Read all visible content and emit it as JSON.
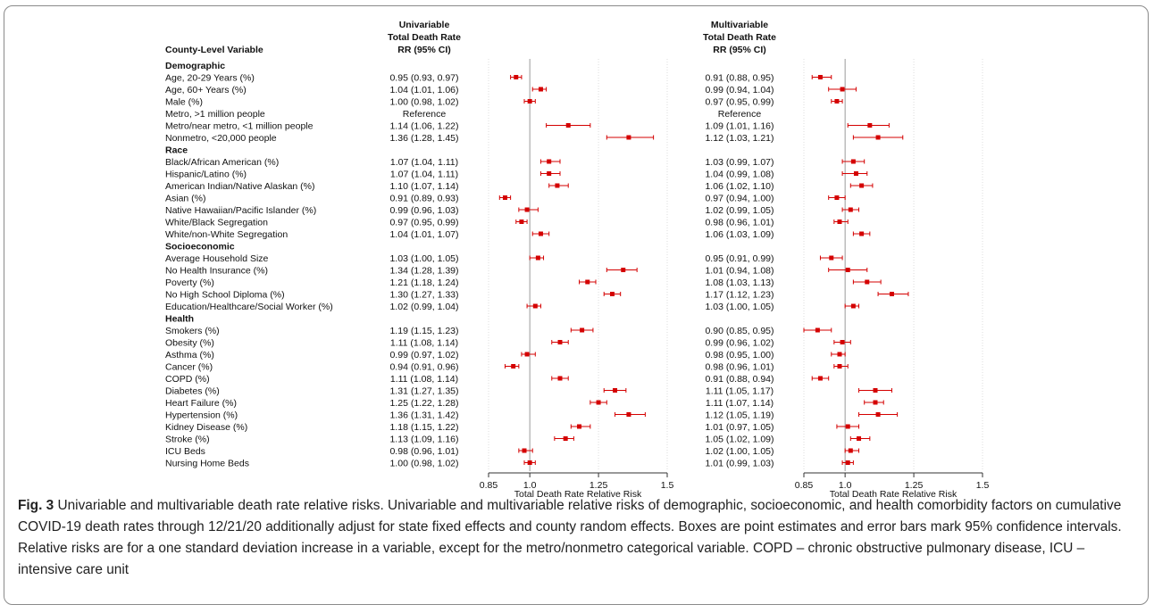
{
  "figure": {
    "header_variable": "County-Level Variable",
    "uni_header": [
      "Univariable",
      "Total Death Rate",
      "RR (95% CI)"
    ],
    "multi_header": [
      "Multivariable",
      "Total Death Rate",
      "RR (95% CI)"
    ],
    "xlabel": "Total Death Rate Relative Risk"
  },
  "caption": {
    "lead": "Fig. 3",
    "text": "Univariable and multivariable death rate relative risks. Univariable and multivariable relative risks of demographic, socioeconomic, and health comorbidity factors on cumulative COVID-19 death rates through 12/21/20 additionally adjust for state fixed effects and county random effects. Boxes are point estimates and error bars mark 95% confidence intervals. Relative risks are for a one standard deviation increase in a variable, except for the metro/nonmetro categorical variable. COPD – chronic obstructive pulmonary disease, ICU – intensive care unit"
  },
  "chart_data": {
    "type": "forest",
    "xlabel": "Total Death Rate Relative Risk",
    "xlim": [
      0.85,
      1.5
    ],
    "xticks": [
      0.85,
      1.0,
      1.25,
      1.5
    ],
    "xtick_labels": [
      "0.85",
      "1.0",
      "1.25",
      "1.5"
    ],
    "reference_line": 1.0,
    "marker_color": "#d40000",
    "panels": [
      "Univariable",
      "Multivariable"
    ],
    "rows": [
      {
        "type": "header",
        "label": "Demographic"
      },
      {
        "label": "Age, 20-29 Years (%)",
        "uni_text": "0.95 (0.93, 0.97)",
        "uni": [
          0.95,
          0.93,
          0.97
        ],
        "multi_text": "0.91 (0.88, 0.95)",
        "multi": [
          0.91,
          0.88,
          0.95
        ]
      },
      {
        "label": "Age, 60+ Years (%)",
        "uni_text": "1.04 (1.01, 1.06)",
        "uni": [
          1.04,
          1.01,
          1.06
        ],
        "multi_text": "0.99 (0.94, 1.04)",
        "multi": [
          0.99,
          0.94,
          1.04
        ]
      },
      {
        "label": "Male (%)",
        "uni_text": "1.00 (0.98, 1.02)",
        "uni": [
          1.0,
          0.98,
          1.02
        ],
        "multi_text": "0.97 (0.95, 0.99)",
        "multi": [
          0.97,
          0.95,
          0.99
        ]
      },
      {
        "label": "Metro, >1 million people",
        "uni_text": "Reference",
        "uni": null,
        "multi_text": "Reference",
        "multi": null
      },
      {
        "label": "Metro/near metro, <1 million people",
        "uni_text": "1.14 (1.06, 1.22)",
        "uni": [
          1.14,
          1.06,
          1.22
        ],
        "multi_text": "1.09 (1.01, 1.16)",
        "multi": [
          1.09,
          1.01,
          1.16
        ]
      },
      {
        "label": "Nonmetro, <20,000 people",
        "uni_text": "1.36 (1.28, 1.45)",
        "uni": [
          1.36,
          1.28,
          1.45
        ],
        "multi_text": "1.12 (1.03, 1.21)",
        "multi": [
          1.12,
          1.03,
          1.21
        ]
      },
      {
        "type": "header",
        "label": "Race"
      },
      {
        "label": "Black/African American (%)",
        "uni_text": "1.07 (1.04, 1.11)",
        "uni": [
          1.07,
          1.04,
          1.11
        ],
        "multi_text": "1.03 (0.99, 1.07)",
        "multi": [
          1.03,
          0.99,
          1.07
        ]
      },
      {
        "label": "Hispanic/Latino (%)",
        "uni_text": "1.07 (1.04, 1.11)",
        "uni": [
          1.07,
          1.04,
          1.11
        ],
        "multi_text": "1.04 (0.99, 1.08)",
        "multi": [
          1.04,
          0.99,
          1.08
        ]
      },
      {
        "label": "American Indian/Native Alaskan (%)",
        "uni_text": "1.10 (1.07, 1.14)",
        "uni": [
          1.1,
          1.07,
          1.14
        ],
        "multi_text": "1.06 (1.02, 1.10)",
        "multi": [
          1.06,
          1.02,
          1.1
        ]
      },
      {
        "label": "Asian (%)",
        "uni_text": "0.91 (0.89, 0.93)",
        "uni": [
          0.91,
          0.89,
          0.93
        ],
        "multi_text": "0.97 (0.94, 1.00)",
        "multi": [
          0.97,
          0.94,
          1.0
        ]
      },
      {
        "label": "Native Hawaiian/Pacific Islander (%)",
        "uni_text": "0.99 (0.96, 1.03)",
        "uni": [
          0.99,
          0.96,
          1.03
        ],
        "multi_text": "1.02 (0.99, 1.05)",
        "multi": [
          1.02,
          0.99,
          1.05
        ]
      },
      {
        "label": "White/Black Segregation",
        "uni_text": "0.97 (0.95, 0.99)",
        "uni": [
          0.97,
          0.95,
          0.99
        ],
        "multi_text": "0.98 (0.96, 1.01)",
        "multi": [
          0.98,
          0.96,
          1.01
        ]
      },
      {
        "label": "White/non-White Segregation",
        "uni_text": "1.04 (1.01, 1.07)",
        "uni": [
          1.04,
          1.01,
          1.07
        ],
        "multi_text": "1.06 (1.03, 1.09)",
        "multi": [
          1.06,
          1.03,
          1.09
        ]
      },
      {
        "type": "header",
        "label": "Socioeconomic"
      },
      {
        "label": "Average Household Size",
        "uni_text": "1.03 (1.00, 1.05)",
        "uni": [
          1.03,
          1.0,
          1.05
        ],
        "multi_text": "0.95 (0.91, 0.99)",
        "multi": [
          0.95,
          0.91,
          0.99
        ]
      },
      {
        "label": "No Health Insurance (%)",
        "uni_text": "1.34 (1.28, 1.39)",
        "uni": [
          1.34,
          1.28,
          1.39
        ],
        "multi_text": "1.01 (0.94, 1.08)",
        "multi": [
          1.01,
          0.94,
          1.08
        ]
      },
      {
        "label": "Poverty (%)",
        "uni_text": "1.21 (1.18, 1.24)",
        "uni": [
          1.21,
          1.18,
          1.24
        ],
        "multi_text": "1.08 (1.03, 1.13)",
        "multi": [
          1.08,
          1.03,
          1.13
        ]
      },
      {
        "label": "No High School Diploma (%)",
        "uni_text": "1.30 (1.27, 1.33)",
        "uni": [
          1.3,
          1.27,
          1.33
        ],
        "multi_text": "1.17 (1.12, 1.23)",
        "multi": [
          1.17,
          1.12,
          1.23
        ]
      },
      {
        "label": "Education/Healthcare/Social Worker (%)",
        "uni_text": "1.02 (0.99, 1.04)",
        "uni": [
          1.02,
          0.99,
          1.04
        ],
        "multi_text": "1.03 (1.00, 1.05)",
        "multi": [
          1.03,
          1.0,
          1.05
        ]
      },
      {
        "type": "header",
        "label": "Health"
      },
      {
        "label": "Smokers (%)",
        "uni_text": "1.19 (1.15, 1.23)",
        "uni": [
          1.19,
          1.15,
          1.23
        ],
        "multi_text": "0.90 (0.85, 0.95)",
        "multi": [
          0.9,
          0.85,
          0.95
        ]
      },
      {
        "label": "Obesity (%)",
        "uni_text": "1.11 (1.08, 1.14)",
        "uni": [
          1.11,
          1.08,
          1.14
        ],
        "multi_text": "0.99 (0.96, 1.02)",
        "multi": [
          0.99,
          0.96,
          1.02
        ]
      },
      {
        "label": "Asthma (%)",
        "uni_text": "0.99 (0.97, 1.02)",
        "uni": [
          0.99,
          0.97,
          1.02
        ],
        "multi_text": "0.98 (0.95, 1.00)",
        "multi": [
          0.98,
          0.95,
          1.0
        ]
      },
      {
        "label": "Cancer (%)",
        "uni_text": "0.94 (0.91, 0.96)",
        "uni": [
          0.94,
          0.91,
          0.96
        ],
        "multi_text": "0.98 (0.96, 1.01)",
        "multi": [
          0.98,
          0.96,
          1.01
        ]
      },
      {
        "label": "COPD (%)",
        "uni_text": "1.11 (1.08, 1.14)",
        "uni": [
          1.11,
          1.08,
          1.14
        ],
        "multi_text": "0.91 (0.88, 0.94)",
        "multi": [
          0.91,
          0.88,
          0.94
        ]
      },
      {
        "label": "Diabetes (%)",
        "uni_text": "1.31 (1.27, 1.35)",
        "uni": [
          1.31,
          1.27,
          1.35
        ],
        "multi_text": "1.11 (1.05, 1.17)",
        "multi": [
          1.11,
          1.05,
          1.17
        ]
      },
      {
        "label": "Heart Failure (%)",
        "uni_text": "1.25 (1.22, 1.28)",
        "uni": [
          1.25,
          1.22,
          1.28
        ],
        "multi_text": "1.11 (1.07, 1.14)",
        "multi": [
          1.11,
          1.07,
          1.14
        ]
      },
      {
        "label": "Hypertension (%)",
        "uni_text": "1.36 (1.31, 1.42)",
        "uni": [
          1.36,
          1.31,
          1.42
        ],
        "multi_text": "1.12 (1.05, 1.19)",
        "multi": [
          1.12,
          1.05,
          1.19
        ]
      },
      {
        "label": "Kidney Disease (%)",
        "uni_text": "1.18 (1.15, 1.22)",
        "uni": [
          1.18,
          1.15,
          1.22
        ],
        "multi_text": "1.01 (0.97, 1.05)",
        "multi": [
          1.01,
          0.97,
          1.05
        ]
      },
      {
        "label": "Stroke (%)",
        "uni_text": "1.13 (1.09, 1.16)",
        "uni": [
          1.13,
          1.09,
          1.16
        ],
        "multi_text": "1.05 (1.02, 1.09)",
        "multi": [
          1.05,
          1.02,
          1.09
        ]
      },
      {
        "label": "ICU Beds",
        "uni_text": "0.98 (0.96, 1.01)",
        "uni": [
          0.98,
          0.96,
          1.01
        ],
        "multi_text": "1.02 (1.00, 1.05)",
        "multi": [
          1.02,
          1.0,
          1.05
        ]
      },
      {
        "label": "Nursing Home Beds",
        "uni_text": "1.00 (0.98, 1.02)",
        "uni": [
          1.0,
          0.98,
          1.02
        ],
        "multi_text": "1.01 (0.99, 1.03)",
        "multi": [
          1.01,
          0.99,
          1.03
        ]
      }
    ]
  }
}
